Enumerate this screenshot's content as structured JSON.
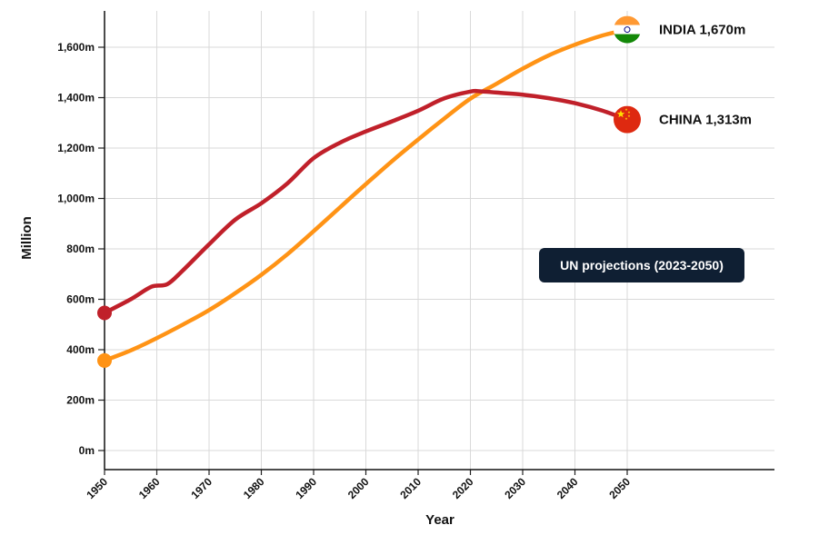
{
  "chart_data": {
    "type": "line",
    "xlabel": "Year",
    "ylabel": "Million",
    "xlim": [
      1950,
      2050
    ],
    "ylim": [
      0,
      1700
    ],
    "x_ticks": [
      "1950",
      "1960",
      "1970",
      "1980",
      "1990",
      "2000",
      "2010",
      "2020",
      "2030",
      "2040",
      "2050"
    ],
    "y_ticks": [
      {
        "value": 0,
        "label": "0m"
      },
      {
        "value": 200,
        "label": "200m"
      },
      {
        "value": 400,
        "label": "400m"
      },
      {
        "value": 600,
        "label": "600m"
      },
      {
        "value": 800,
        "label": "800m"
      },
      {
        "value": 1000,
        "label": "1,000m"
      },
      {
        "value": 1200,
        "label": "1,200m"
      },
      {
        "value": 1400,
        "label": "1,400m"
      },
      {
        "value": 1600,
        "label": "1,600m"
      }
    ],
    "grid": true,
    "annotation": "UN projections (2023-2050)",
    "series": [
      {
        "name": "CHINA",
        "end_label": "CHINA 1,313m",
        "color": "#c0202a",
        "icon": "china-flag-icon",
        "x": [
          1950,
          1955,
          1959,
          1962,
          1965,
          1970,
          1975,
          1980,
          1985,
          1990,
          1995,
          2000,
          2005,
          2010,
          2015,
          2020,
          2022,
          2025,
          2030,
          2035,
          2040,
          2045,
          2050
        ],
        "values": [
          546,
          600,
          650,
          660,
          715,
          818,
          916,
          981,
          1060,
          1160,
          1221,
          1266,
          1306,
          1348,
          1397,
          1424,
          1425,
          1420,
          1412,
          1398,
          1378,
          1350,
          1313
        ]
      },
      {
        "name": "INDIA",
        "end_label": "INDIA 1,670m",
        "color": "#ff9315",
        "icon": "india-flag-icon",
        "x": [
          1950,
          1955,
          1960,
          1965,
          1970,
          1975,
          1980,
          1985,
          1990,
          1995,
          2000,
          2005,
          2010,
          2015,
          2020,
          2025,
          2030,
          2035,
          2040,
          2045,
          2050
        ],
        "values": [
          357,
          397,
          446,
          500,
          557,
          624,
          697,
          779,
          870,
          964,
          1057,
          1148,
          1234,
          1317,
          1396,
          1455,
          1515,
          1568,
          1610,
          1645,
          1670
        ]
      }
    ]
  }
}
